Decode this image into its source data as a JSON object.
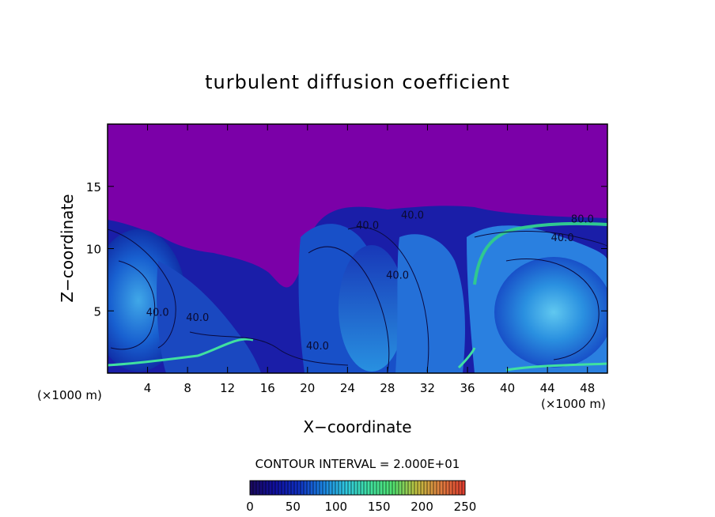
{
  "chart_data": {
    "type": "heatmap",
    "title": "turbulent diffusion coefficient",
    "xlabel": "X−coordinate",
    "ylabel": "Z−coordinate",
    "x_units_left": "(×1000 m)",
    "x_units_right": "(×1000 m)",
    "xlim": [
      0,
      50
    ],
    "ylim": [
      0,
      20
    ],
    "x_ticks": [
      4,
      8,
      12,
      16,
      20,
      24,
      28,
      32,
      36,
      40,
      44,
      48
    ],
    "y_ticks": [
      5,
      10,
      15
    ],
    "contour_interval_text": "CONTOUR INTERVAL = 2.000E+01",
    "contour_labels": [
      {
        "text": "40.0",
        "x": 26,
        "z": 11.6
      },
      {
        "text": "40.0",
        "x": 30.5,
        "z": 12.4
      },
      {
        "text": "40.0",
        "x": 45.5,
        "z": 10.6
      },
      {
        "text": "80.0",
        "x": 47.5,
        "z": 12.1
      },
      {
        "text": "40.0",
        "x": 21,
        "z": 1.9
      },
      {
        "text": "40.0",
        "x": 9,
        "z": 4.2
      },
      {
        "text": "40.0",
        "x": 5,
        "z": 4.6
      },
      {
        "text": "40.0",
        "x": 29,
        "z": 7.6
      }
    ],
    "background_color": "#7b00a8",
    "colorbar": {
      "min": 0,
      "max": 250,
      "ticks": [
        "0",
        "50",
        "100",
        "150",
        "200",
        "250"
      ],
      "colors": [
        "#1a0a60",
        "#1010a0",
        "#1030c0",
        "#1a80e0",
        "#30c8e0",
        "#40e0a0",
        "#50e070",
        "#c0c040",
        "#e08040",
        "#e04030"
      ]
    }
  }
}
